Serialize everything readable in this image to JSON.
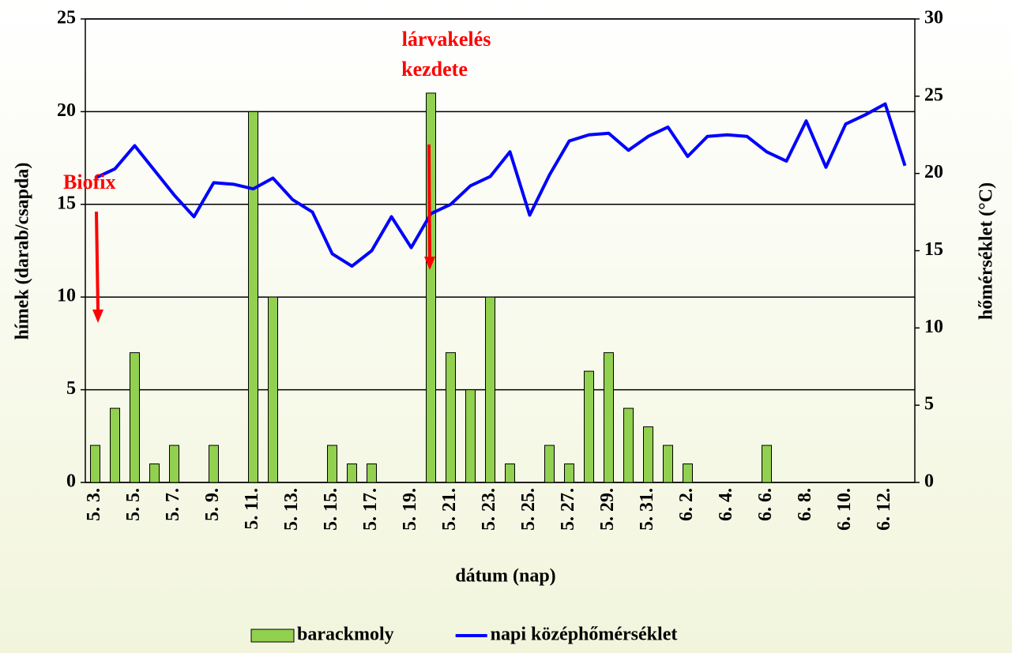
{
  "chart_data": {
    "type": "bar",
    "x_label": "dátum (nap)",
    "y_label": "hímek (darab/csapda)",
    "y2_label": "hőmérséklet (°C)",
    "annotations": [
      "Biofix",
      "lárvakelés",
      "kezdete"
    ],
    "categories": [
      "5. 3.",
      null,
      "5. 5.",
      null,
      "5. 7.",
      null,
      "5. 9.",
      null,
      "5. 11.",
      null,
      "5. 13.",
      null,
      "5. 15.",
      null,
      "5. 17.",
      null,
      "5. 19.",
      null,
      "5. 21.",
      null,
      "5. 23.",
      null,
      "5. 25.",
      null,
      "5. 27.",
      null,
      "5. 29.",
      null,
      "5. 31.",
      null,
      "6. 2.",
      null,
      "6. 4.",
      null,
      "6. 6.",
      null,
      "6. 8.",
      null,
      "6. 10.",
      null,
      "6. 12.",
      null
    ],
    "series": [
      {
        "name": "barackmoly",
        "type": "bar",
        "color": "#92d050",
        "values": [
          2,
          4,
          7,
          1,
          2,
          0,
          2,
          0,
          20,
          10,
          0,
          0,
          2,
          1,
          1,
          0,
          0,
          21,
          7,
          5,
          10,
          1,
          0,
          2,
          1,
          6,
          7,
          4,
          3,
          2,
          1,
          0,
          0,
          0,
          2,
          0,
          0,
          0,
          0,
          0,
          0,
          0
        ]
      },
      {
        "name": "napi középhőmérséklet",
        "type": "line",
        "color": "#0000ff",
        "axis": "y2",
        "values": [
          19.7,
          20.3,
          21.8,
          20.2,
          18.6,
          17.2,
          19.4,
          19.3,
          19.0,
          19.7,
          18.3,
          17.5,
          14.8,
          14.0,
          15.0,
          17.2,
          15.2,
          17.4,
          18.0,
          19.2,
          19.8,
          21.4,
          17.3,
          19.9,
          22.1,
          22.5,
          22.6,
          21.5,
          22.4,
          23.0,
          21.1,
          22.4,
          22.5,
          22.4,
          21.4,
          20.8,
          23.4,
          20.4,
          23.2,
          23.8,
          24.5,
          20.5
        ]
      }
    ],
    "ylim": [
      0,
      25
    ],
    "yticks": [
      0,
      5,
      10,
      15,
      20,
      25
    ],
    "y2lim": [
      0,
      30
    ],
    "y2ticks": [
      0,
      5,
      10,
      15,
      20,
      25,
      30
    ],
    "grid": true
  }
}
